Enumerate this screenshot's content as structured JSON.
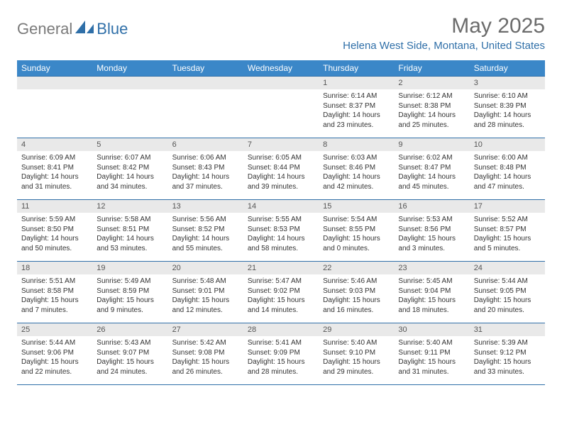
{
  "brand": {
    "part1": "General",
    "part2": "Blue"
  },
  "title": "May 2025",
  "location": "Helena West Side, Montana, United States",
  "colors": {
    "header_bg": "#3b87c8",
    "header_text": "#ffffff",
    "row_border": "#2f6fa8",
    "daynum_bg": "#e9e9e9",
    "body_text": "#333333",
    "logo_gray": "#7a7a7a",
    "logo_blue": "#2f6fa8",
    "title_gray": "#6b6b6b"
  },
  "dayNames": [
    "Sunday",
    "Monday",
    "Tuesday",
    "Wednesday",
    "Thursday",
    "Friday",
    "Saturday"
  ],
  "weeks": [
    [
      {
        "empty": true
      },
      {
        "empty": true
      },
      {
        "empty": true
      },
      {
        "empty": true
      },
      {
        "day": "1",
        "sunrise": "Sunrise: 6:14 AM",
        "sunset": "Sunset: 8:37 PM",
        "daylight": "Daylight: 14 hours and 23 minutes."
      },
      {
        "day": "2",
        "sunrise": "Sunrise: 6:12 AM",
        "sunset": "Sunset: 8:38 PM",
        "daylight": "Daylight: 14 hours and 25 minutes."
      },
      {
        "day": "3",
        "sunrise": "Sunrise: 6:10 AM",
        "sunset": "Sunset: 8:39 PM",
        "daylight": "Daylight: 14 hours and 28 minutes."
      }
    ],
    [
      {
        "day": "4",
        "sunrise": "Sunrise: 6:09 AM",
        "sunset": "Sunset: 8:41 PM",
        "daylight": "Daylight: 14 hours and 31 minutes."
      },
      {
        "day": "5",
        "sunrise": "Sunrise: 6:07 AM",
        "sunset": "Sunset: 8:42 PM",
        "daylight": "Daylight: 14 hours and 34 minutes."
      },
      {
        "day": "6",
        "sunrise": "Sunrise: 6:06 AM",
        "sunset": "Sunset: 8:43 PM",
        "daylight": "Daylight: 14 hours and 37 minutes."
      },
      {
        "day": "7",
        "sunrise": "Sunrise: 6:05 AM",
        "sunset": "Sunset: 8:44 PM",
        "daylight": "Daylight: 14 hours and 39 minutes."
      },
      {
        "day": "8",
        "sunrise": "Sunrise: 6:03 AM",
        "sunset": "Sunset: 8:46 PM",
        "daylight": "Daylight: 14 hours and 42 minutes."
      },
      {
        "day": "9",
        "sunrise": "Sunrise: 6:02 AM",
        "sunset": "Sunset: 8:47 PM",
        "daylight": "Daylight: 14 hours and 45 minutes."
      },
      {
        "day": "10",
        "sunrise": "Sunrise: 6:00 AM",
        "sunset": "Sunset: 8:48 PM",
        "daylight": "Daylight: 14 hours and 47 minutes."
      }
    ],
    [
      {
        "day": "11",
        "sunrise": "Sunrise: 5:59 AM",
        "sunset": "Sunset: 8:50 PM",
        "daylight": "Daylight: 14 hours and 50 minutes."
      },
      {
        "day": "12",
        "sunrise": "Sunrise: 5:58 AM",
        "sunset": "Sunset: 8:51 PM",
        "daylight": "Daylight: 14 hours and 53 minutes."
      },
      {
        "day": "13",
        "sunrise": "Sunrise: 5:56 AM",
        "sunset": "Sunset: 8:52 PM",
        "daylight": "Daylight: 14 hours and 55 minutes."
      },
      {
        "day": "14",
        "sunrise": "Sunrise: 5:55 AM",
        "sunset": "Sunset: 8:53 PM",
        "daylight": "Daylight: 14 hours and 58 minutes."
      },
      {
        "day": "15",
        "sunrise": "Sunrise: 5:54 AM",
        "sunset": "Sunset: 8:55 PM",
        "daylight": "Daylight: 15 hours and 0 minutes."
      },
      {
        "day": "16",
        "sunrise": "Sunrise: 5:53 AM",
        "sunset": "Sunset: 8:56 PM",
        "daylight": "Daylight: 15 hours and 3 minutes."
      },
      {
        "day": "17",
        "sunrise": "Sunrise: 5:52 AM",
        "sunset": "Sunset: 8:57 PM",
        "daylight": "Daylight: 15 hours and 5 minutes."
      }
    ],
    [
      {
        "day": "18",
        "sunrise": "Sunrise: 5:51 AM",
        "sunset": "Sunset: 8:58 PM",
        "daylight": "Daylight: 15 hours and 7 minutes."
      },
      {
        "day": "19",
        "sunrise": "Sunrise: 5:49 AM",
        "sunset": "Sunset: 8:59 PM",
        "daylight": "Daylight: 15 hours and 9 minutes."
      },
      {
        "day": "20",
        "sunrise": "Sunrise: 5:48 AM",
        "sunset": "Sunset: 9:01 PM",
        "daylight": "Daylight: 15 hours and 12 minutes."
      },
      {
        "day": "21",
        "sunrise": "Sunrise: 5:47 AM",
        "sunset": "Sunset: 9:02 PM",
        "daylight": "Daylight: 15 hours and 14 minutes."
      },
      {
        "day": "22",
        "sunrise": "Sunrise: 5:46 AM",
        "sunset": "Sunset: 9:03 PM",
        "daylight": "Daylight: 15 hours and 16 minutes."
      },
      {
        "day": "23",
        "sunrise": "Sunrise: 5:45 AM",
        "sunset": "Sunset: 9:04 PM",
        "daylight": "Daylight: 15 hours and 18 minutes."
      },
      {
        "day": "24",
        "sunrise": "Sunrise: 5:44 AM",
        "sunset": "Sunset: 9:05 PM",
        "daylight": "Daylight: 15 hours and 20 minutes."
      }
    ],
    [
      {
        "day": "25",
        "sunrise": "Sunrise: 5:44 AM",
        "sunset": "Sunset: 9:06 PM",
        "daylight": "Daylight: 15 hours and 22 minutes."
      },
      {
        "day": "26",
        "sunrise": "Sunrise: 5:43 AM",
        "sunset": "Sunset: 9:07 PM",
        "daylight": "Daylight: 15 hours and 24 minutes."
      },
      {
        "day": "27",
        "sunrise": "Sunrise: 5:42 AM",
        "sunset": "Sunset: 9:08 PM",
        "daylight": "Daylight: 15 hours and 26 minutes."
      },
      {
        "day": "28",
        "sunrise": "Sunrise: 5:41 AM",
        "sunset": "Sunset: 9:09 PM",
        "daylight": "Daylight: 15 hours and 28 minutes."
      },
      {
        "day": "29",
        "sunrise": "Sunrise: 5:40 AM",
        "sunset": "Sunset: 9:10 PM",
        "daylight": "Daylight: 15 hours and 29 minutes."
      },
      {
        "day": "30",
        "sunrise": "Sunrise: 5:40 AM",
        "sunset": "Sunset: 9:11 PM",
        "daylight": "Daylight: 15 hours and 31 minutes."
      },
      {
        "day": "31",
        "sunrise": "Sunrise: 5:39 AM",
        "sunset": "Sunset: 9:12 PM",
        "daylight": "Daylight: 15 hours and 33 minutes."
      }
    ]
  ]
}
